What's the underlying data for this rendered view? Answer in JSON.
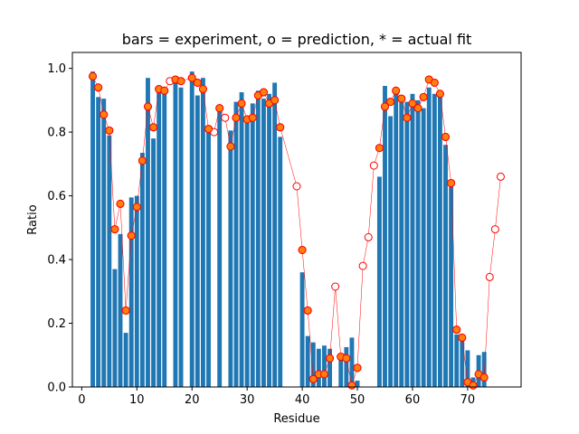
{
  "chart_data": {
    "type": "bar",
    "title": "bars = experiment, o = prediction, * = actual fit",
    "xlabel": "Residue",
    "ylabel": "Ratio",
    "xlim": [
      -1.7,
      79.7
    ],
    "ylim": [
      0,
      1.05
    ],
    "xticks": [
      0,
      10,
      20,
      30,
      40,
      50,
      60,
      70
    ],
    "yticks": [
      0.0,
      0.2,
      0.4,
      0.6,
      0.8,
      1.0
    ],
    "xtick_labels": [
      "0",
      "10",
      "20",
      "30",
      "40",
      "50",
      "60",
      "70"
    ],
    "ytick_labels": [
      "0.0",
      "0.2",
      "0.4",
      "0.6",
      "0.8",
      "1.0"
    ],
    "grid": false,
    "colors": {
      "bars": "#1f77b4",
      "prediction_edge": "#ff0000",
      "fit_fill": "#ff7f0e",
      "line": "#ff0000"
    },
    "series": [
      {
        "role": "experiment",
        "points": [
          [
            2,
            0.99
          ],
          [
            3,
            0.91
          ],
          [
            4,
            0.905
          ],
          [
            5,
            0.79
          ],
          [
            6,
            0.37
          ],
          [
            7,
            0.48
          ],
          [
            8,
            0.17
          ],
          [
            9,
            0.595
          ],
          [
            10,
            0.6
          ],
          [
            11,
            0.735
          ],
          [
            12,
            0.97
          ],
          [
            13,
            0.78
          ],
          [
            14,
            0.94
          ],
          [
            15,
            0.94
          ],
          [
            17,
            0.97
          ],
          [
            18,
            0.94
          ],
          [
            20,
            0.99
          ],
          [
            21,
            0.915
          ],
          [
            22,
            0.97
          ],
          [
            23,
            0.82
          ],
          [
            25,
            0.88
          ],
          [
            27,
            0.805
          ],
          [
            28,
            0.895
          ],
          [
            29,
            0.925
          ],
          [
            30,
            0.835
          ],
          [
            31,
            0.89
          ],
          [
            32,
            0.93
          ],
          [
            33,
            0.905
          ],
          [
            34,
            0.92
          ],
          [
            35,
            0.955
          ],
          [
            36,
            0.785
          ],
          [
            40,
            0.36
          ],
          [
            41,
            0.16
          ],
          [
            42,
            0.14
          ],
          [
            43,
            0.12
          ],
          [
            44,
            0.13
          ],
          [
            45,
            0.12
          ],
          [
            47,
            0.09
          ],
          [
            48,
            0.125
          ],
          [
            49,
            0.155
          ],
          [
            50,
            0.02
          ],
          [
            54,
            0.66
          ],
          [
            55,
            0.945
          ],
          [
            56,
            0.85
          ],
          [
            57,
            0.935
          ],
          [
            58,
            0.91
          ],
          [
            59,
            0.895
          ],
          [
            60,
            0.92
          ],
          [
            61,
            0.9
          ],
          [
            62,
            0.875
          ],
          [
            63,
            0.94
          ],
          [
            64,
            0.92
          ],
          [
            65,
            0.925
          ],
          [
            66,
            0.76
          ],
          [
            67,
            0.635
          ],
          [
            68,
            0.165
          ],
          [
            69,
            0.16
          ],
          [
            70,
            0.115
          ],
          [
            71,
            0.03
          ],
          [
            72,
            0.1
          ],
          [
            73,
            0.11
          ]
        ]
      },
      {
        "role": "prediction",
        "points": [
          [
            2,
            0.975
          ],
          [
            3,
            0.94
          ],
          [
            4,
            0.855
          ],
          [
            5,
            0.805
          ],
          [
            6,
            0.495
          ],
          [
            7,
            0.575
          ],
          [
            8,
            0.24
          ],
          [
            9,
            0.475
          ],
          [
            10,
            0.565
          ],
          [
            11,
            0.71
          ],
          [
            12,
            0.88
          ],
          [
            13,
            0.815
          ],
          [
            14,
            0.935
          ],
          [
            15,
            0.93
          ],
          [
            16,
            0.96
          ],
          [
            17,
            0.965
          ],
          [
            18,
            0.96
          ],
          [
            20,
            0.97
          ],
          [
            21,
            0.955
          ],
          [
            22,
            0.935
          ],
          [
            23,
            0.81
          ],
          [
            24,
            0.8
          ],
          [
            25,
            0.875
          ],
          [
            26,
            0.845
          ],
          [
            27,
            0.755
          ],
          [
            28,
            0.845
          ],
          [
            29,
            0.89
          ],
          [
            30,
            0.84
          ],
          [
            31,
            0.845
          ],
          [
            32,
            0.915
          ],
          [
            33,
            0.925
          ],
          [
            34,
            0.89
          ],
          [
            35,
            0.9
          ],
          [
            36,
            0.815
          ],
          [
            39,
            0.63
          ],
          [
            40,
            0.43
          ],
          [
            41,
            0.24
          ],
          [
            42,
            0.025
          ],
          [
            43,
            0.04
          ],
          [
            44,
            0.04
          ],
          [
            45,
            0.09
          ],
          [
            46,
            0.315
          ],
          [
            47,
            0.095
          ],
          [
            48,
            0.09
          ],
          [
            49,
            0.005
          ],
          [
            50,
            0.06
          ],
          [
            51,
            0.38
          ],
          [
            52,
            0.47
          ],
          [
            53,
            0.695
          ],
          [
            54,
            0.75
          ],
          [
            55,
            0.88
          ],
          [
            56,
            0.895
          ],
          [
            57,
            0.93
          ],
          [
            58,
            0.905
          ],
          [
            59,
            0.845
          ],
          [
            60,
            0.89
          ],
          [
            61,
            0.875
          ],
          [
            62,
            0.91
          ],
          [
            63,
            0.965
          ],
          [
            64,
            0.955
          ],
          [
            65,
            0.92
          ],
          [
            66,
            0.785
          ],
          [
            67,
            0.64
          ],
          [
            68,
            0.18
          ],
          [
            69,
            0.155
          ],
          [
            70,
            0.015
          ],
          [
            71,
            0.005
          ],
          [
            72,
            0.04
          ],
          [
            73,
            0.03
          ],
          [
            74,
            0.345
          ],
          [
            75,
            0.495
          ],
          [
            76,
            0.66
          ]
        ]
      },
      {
        "role": "actual fit",
        "points": [
          [
            2,
            0.975
          ],
          [
            3,
            0.94
          ],
          [
            4,
            0.855
          ],
          [
            5,
            0.805
          ],
          [
            6,
            0.495
          ],
          [
            7,
            0.575
          ],
          [
            8,
            0.24
          ],
          [
            9,
            0.475
          ],
          [
            10,
            0.565
          ],
          [
            11,
            0.71
          ],
          [
            12,
            0.88
          ],
          [
            13,
            0.815
          ],
          [
            14,
            0.935
          ],
          [
            15,
            0.93
          ],
          [
            17,
            0.965
          ],
          [
            18,
            0.96
          ],
          [
            20,
            0.97
          ],
          [
            21,
            0.955
          ],
          [
            22,
            0.935
          ],
          [
            23,
            0.81
          ],
          [
            25,
            0.875
          ],
          [
            27,
            0.755
          ],
          [
            28,
            0.845
          ],
          [
            29,
            0.89
          ],
          [
            30,
            0.84
          ],
          [
            31,
            0.845
          ],
          [
            32,
            0.915
          ],
          [
            33,
            0.925
          ],
          [
            34,
            0.89
          ],
          [
            35,
            0.9
          ],
          [
            36,
            0.815
          ],
          [
            40,
            0.43
          ],
          [
            41,
            0.24
          ],
          [
            42,
            0.025
          ],
          [
            43,
            0.04
          ],
          [
            44,
            0.04
          ],
          [
            45,
            0.09
          ],
          [
            47,
            0.095
          ],
          [
            48,
            0.09
          ],
          [
            49,
            0.005
          ],
          [
            50,
            0.06
          ],
          [
            54,
            0.75
          ],
          [
            55,
            0.88
          ],
          [
            56,
            0.895
          ],
          [
            57,
            0.93
          ],
          [
            58,
            0.905
          ],
          [
            59,
            0.845
          ],
          [
            60,
            0.89
          ],
          [
            61,
            0.875
          ],
          [
            62,
            0.91
          ],
          [
            63,
            0.965
          ],
          [
            64,
            0.955
          ],
          [
            65,
            0.92
          ],
          [
            66,
            0.785
          ],
          [
            67,
            0.64
          ],
          [
            68,
            0.18
          ],
          [
            69,
            0.155
          ],
          [
            70,
            0.015
          ],
          [
            71,
            0.005
          ],
          [
            72,
            0.04
          ],
          [
            73,
            0.03
          ]
        ]
      }
    ]
  }
}
